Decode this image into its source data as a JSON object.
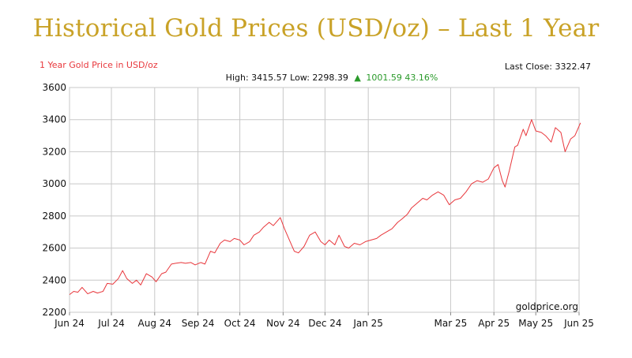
{
  "page": {
    "title": "Historical Gold Prices (USD/oz) – Last 1 Year"
  },
  "chart_data": {
    "type": "line",
    "subtitle": "1 Year Gold Price in USD/oz",
    "last_close_text": "Last Close: 3322.47",
    "stats": {
      "high_low_text": "High: 3415.57 Low: 2298.39",
      "change_text": "1001.59 43.16%",
      "change_arrow": "▲"
    },
    "watermark": "goldprice.org",
    "xlabel": "",
    "ylabel": "",
    "ylim": [
      2200,
      3600
    ],
    "yticks": [
      2200,
      2400,
      2600,
      2800,
      3000,
      3200,
      3400,
      3600
    ],
    "xticks": [
      {
        "label": "Jun 24",
        "date": "2024-06-01"
      },
      {
        "label": "Jul 24",
        "date": "2024-07-01"
      },
      {
        "label": "Aug 24",
        "date": "2024-08-01"
      },
      {
        "label": "Sep 24",
        "date": "2024-09-01"
      },
      {
        "label": "Oct 24",
        "date": "2024-10-01"
      },
      {
        "label": "Nov 24",
        "date": "2024-11-01"
      },
      {
        "label": "Dec 24",
        "date": "2024-12-01"
      },
      {
        "label": "Jan 25",
        "date": "2025-01-01"
      },
      {
        "label": "Mar 25",
        "date": "2025-03-01"
      },
      {
        "label": "Apr 25",
        "date": "2025-04-01"
      },
      {
        "label": "May 25",
        "date": "2025-05-01"
      },
      {
        "label": "Jun 25",
        "date": "2025-06-01"
      }
    ],
    "grid": true,
    "colors": {
      "line": "#e8373c",
      "title": "#c9a227",
      "subtitle": "#e8373c",
      "change": "#2a9a2a",
      "grid": "#c8c8c8"
    },
    "series": [
      {
        "name": "",
        "x": [
          "2024-06-01",
          "2024-06-04",
          "2024-06-07",
          "2024-06-10",
          "2024-06-14",
          "2024-06-18",
          "2024-06-21",
          "2024-06-25",
          "2024-06-28",
          "2024-07-02",
          "2024-07-06",
          "2024-07-09",
          "2024-07-12",
          "2024-07-16",
          "2024-07-19",
          "2024-07-22",
          "2024-07-26",
          "2024-07-30",
          "2024-08-02",
          "2024-08-06",
          "2024-08-09",
          "2024-08-13",
          "2024-08-16",
          "2024-08-20",
          "2024-08-23",
          "2024-08-27",
          "2024-08-30",
          "2024-09-03",
          "2024-09-06",
          "2024-09-10",
          "2024-09-13",
          "2024-09-17",
          "2024-09-20",
          "2024-09-24",
          "2024-09-27",
          "2024-10-01",
          "2024-10-04",
          "2024-10-08",
          "2024-10-11",
          "2024-10-15",
          "2024-10-18",
          "2024-10-22",
          "2024-10-25",
          "2024-10-30",
          "2024-11-02",
          "2024-11-06",
          "2024-11-09",
          "2024-11-12",
          "2024-11-16",
          "2024-11-20",
          "2024-11-24",
          "2024-11-28",
          "2024-12-01",
          "2024-12-04",
          "2024-12-08",
          "2024-12-11",
          "2024-12-15",
          "2024-12-18",
          "2024-12-22",
          "2024-12-26",
          "2024-12-30",
          "2025-01-03",
          "2025-01-07",
          "2025-01-10",
          "2025-01-14",
          "2025-01-18",
          "2025-01-22",
          "2025-01-25",
          "2025-01-29",
          "2025-02-01",
          "2025-02-05",
          "2025-02-09",
          "2025-02-12",
          "2025-02-16",
          "2025-02-20",
          "2025-02-24",
          "2025-02-28",
          "2025-03-04",
          "2025-03-08",
          "2025-03-12",
          "2025-03-16",
          "2025-03-20",
          "2025-03-24",
          "2025-03-28",
          "2025-04-01",
          "2025-04-04",
          "2025-04-07",
          "2025-04-09",
          "2025-04-12",
          "2025-04-16",
          "2025-04-18",
          "2025-04-22",
          "2025-04-24",
          "2025-04-28",
          "2025-05-01",
          "2025-05-05",
          "2025-05-08",
          "2025-05-12",
          "2025-05-15",
          "2025-05-19",
          "2025-05-22",
          "2025-05-26",
          "2025-05-29",
          "2025-06-02"
        ],
        "y": [
          2310,
          2330,
          2325,
          2355,
          2315,
          2330,
          2320,
          2330,
          2380,
          2375,
          2410,
          2460,
          2410,
          2380,
          2400,
          2370,
          2440,
          2420,
          2390,
          2440,
          2450,
          2500,
          2505,
          2510,
          2505,
          2510,
          2495,
          2510,
          2500,
          2580,
          2570,
          2630,
          2650,
          2640,
          2660,
          2650,
          2620,
          2640,
          2680,
          2700,
          2730,
          2760,
          2740,
          2790,
          2720,
          2640,
          2580,
          2570,
          2610,
          2680,
          2700,
          2640,
          2620,
          2650,
          2620,
          2680,
          2610,
          2600,
          2630,
          2620,
          2640,
          2650,
          2660,
          2680,
          2700,
          2720,
          2760,
          2780,
          2810,
          2850,
          2880,
          2910,
          2900,
          2930,
          2950,
          2930,
          2870,
          2900,
          2910,
          2950,
          3000,
          3020,
          3010,
          3030,
          3100,
          3120,
          3020,
          2980,
          3080,
          3230,
          3240,
          3340,
          3300,
          3400,
          3330,
          3320,
          3300,
          3260,
          3350,
          3320,
          3200,
          3280,
          3300,
          3380
        ]
      }
    ]
  }
}
